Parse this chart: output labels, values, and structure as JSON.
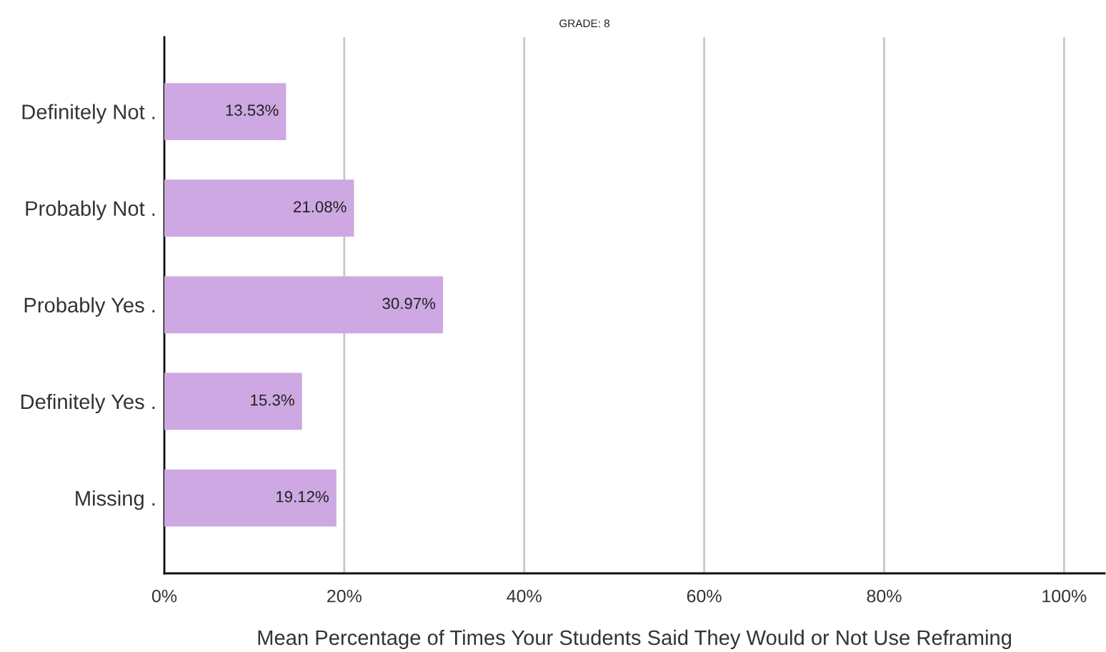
{
  "chart_data": {
    "type": "bar",
    "orientation": "horizontal",
    "title": "GRADE: 8",
    "xlabel": "Mean Percentage of Times Your Students Said They Would or Not Use Reframing",
    "categories": [
      "Definitely Not .",
      "Probably Not .",
      "Probably Yes .",
      "Definitely Yes .",
      "Missing ."
    ],
    "values": [
      13.53,
      21.08,
      30.97,
      15.3,
      19.12
    ],
    "value_labels": [
      "13.53%",
      "21.08%",
      "30.97%",
      "15.3%",
      "19.12%"
    ],
    "color": "#cda8e2",
    "xlim": [
      0,
      104.5
    ],
    "xticks": [
      {
        "value": 0,
        "label": "0%"
      },
      {
        "value": 20,
        "label": "20%"
      },
      {
        "value": 40,
        "label": "40%"
      },
      {
        "value": 60,
        "label": "60%"
      },
      {
        "value": 80,
        "label": "80%"
      },
      {
        "value": 100,
        "label": "100%"
      }
    ],
    "grid": "x",
    "legend": false
  }
}
